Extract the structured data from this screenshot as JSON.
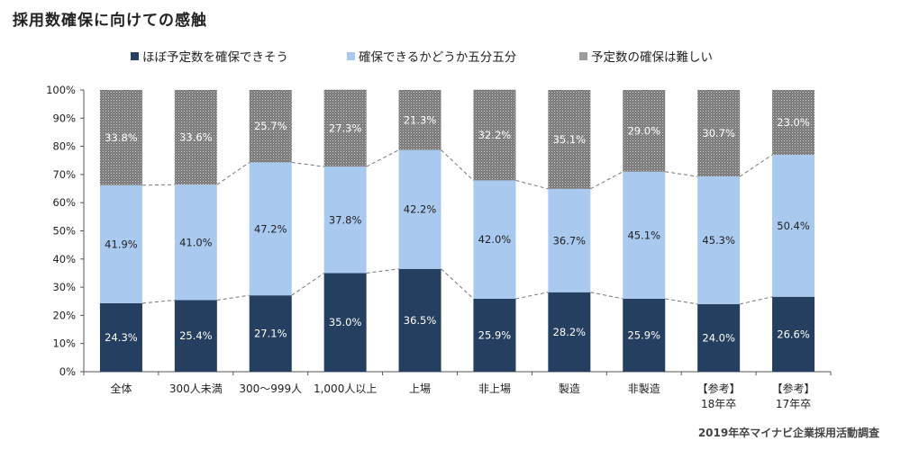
{
  "title": "採用数確保に向けての感触",
  "source": "2019年卒マイナビ企業採用活動調査",
  "chart_data": {
    "type": "bar",
    "stacked": true,
    "categories": [
      [
        "全体"
      ],
      [
        "300人未満"
      ],
      [
        "300～999人"
      ],
      [
        "1,000人以上"
      ],
      [
        "上場"
      ],
      [
        "非上場"
      ],
      [
        "製造"
      ],
      [
        "非製造"
      ],
      [
        "【参考】",
        "18年卒"
      ],
      [
        "【参考】",
        "17年卒"
      ]
    ],
    "series": [
      {
        "name": "ほぼ予定数を確保できそう",
        "color": "#243f60",
        "label_color": "#ffffff",
        "values": [
          24.3,
          25.4,
          27.1,
          35.0,
          36.5,
          25.9,
          28.2,
          25.9,
          24.0,
          26.6
        ],
        "labels": [
          "24.3%",
          "25.4%",
          "27.1%",
          "35.0%",
          "36.5%",
          "25.9%",
          "28.2%",
          "25.9%",
          "24.0%",
          "26.6%"
        ]
      },
      {
        "name": "確保できるかどうか五分五分",
        "color": "#a9c9ef",
        "label_color": "#222222",
        "values": [
          41.9,
          41.0,
          47.2,
          37.8,
          42.2,
          42.0,
          36.7,
          45.1,
          45.3,
          50.4
        ],
        "labels": [
          "41.9%",
          "41.0%",
          "47.2%",
          "37.8%",
          "42.2%",
          "42.0%",
          "36.7%",
          "45.1%",
          "45.3%",
          "50.4%"
        ]
      },
      {
        "name": "予定数の確保は難しい",
        "color": "#8a8a8a",
        "pattern": "dotted",
        "label_color": "#ffffff",
        "values": [
          33.8,
          33.6,
          25.7,
          27.3,
          21.3,
          32.2,
          35.1,
          29.0,
          30.7,
          23.0
        ],
        "labels": [
          "33.8%",
          "33.6%",
          "25.7%",
          "27.3%",
          "21.3%",
          "32.2%",
          "35.1%",
          "29.0%",
          "30.7%",
          "23.0%"
        ]
      }
    ],
    "y_ticks": [
      "0%",
      "10%",
      "20%",
      "30%",
      "40%",
      "50%",
      "60%",
      "70%",
      "80%",
      "90%",
      "100%"
    ],
    "ylim": [
      0,
      100
    ],
    "series_lines": true,
    "grid": false,
    "legend_position": "top"
  }
}
